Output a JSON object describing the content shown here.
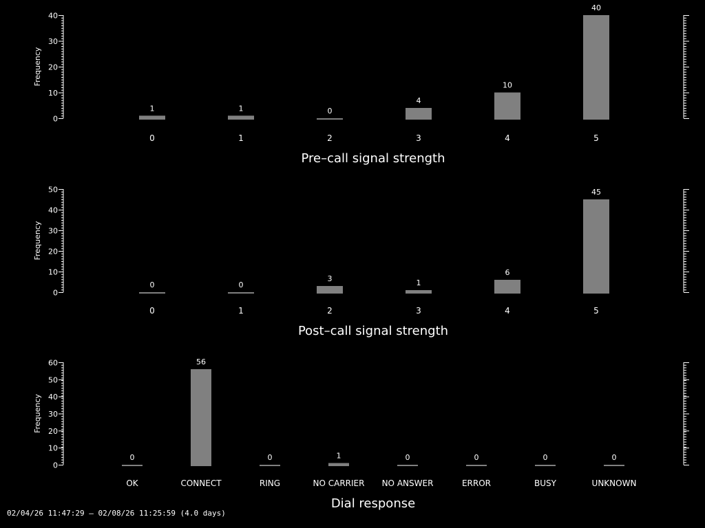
{
  "colors": {
    "background": "#000000",
    "bar": "#808080",
    "text": "#ffffff"
  },
  "footer": {
    "time_range": "02/04/26 11:47:29 – 02/08/26 11:25:59 (4.0 days)"
  },
  "chart_data": [
    {
      "type": "bar",
      "xlabel": "Pre–call signal strength",
      "ylabel": "Frequency",
      "categories": [
        "0",
        "1",
        "2",
        "3",
        "4",
        "5"
      ],
      "values": [
        1,
        1,
        0,
        4,
        10,
        40
      ],
      "ylim": [
        0,
        40
      ],
      "yticks": [
        0,
        10,
        20,
        30,
        40
      ]
    },
    {
      "type": "bar",
      "xlabel": "Post–call signal strength",
      "ylabel": "Frequency",
      "categories": [
        "0",
        "1",
        "2",
        "3",
        "4",
        "5"
      ],
      "values": [
        0,
        0,
        3,
        1,
        6,
        45
      ],
      "ylim": [
        0,
        50
      ],
      "yticks": [
        0,
        10,
        20,
        30,
        40,
        50
      ]
    },
    {
      "type": "bar",
      "xlabel": "Dial response",
      "ylabel": "Frequency",
      "categories": [
        "OK",
        "CONNECT",
        "RING",
        "NO CARRIER",
        "NO ANSWER",
        "ERROR",
        "BUSY",
        "UNKNOWN"
      ],
      "values": [
        0,
        56,
        0,
        1,
        0,
        0,
        0,
        0
      ],
      "ylim": [
        0,
        60
      ],
      "yticks": [
        0,
        10,
        20,
        30,
        40,
        50,
        60
      ]
    }
  ]
}
